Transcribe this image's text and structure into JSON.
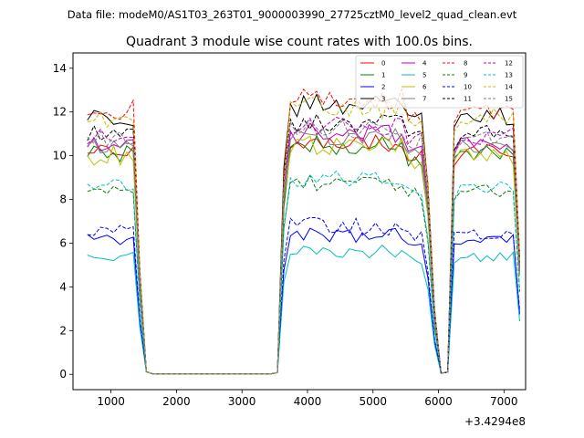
{
  "chart_data": {
    "type": "line",
    "suptitle": "Data file: modeM0/AS1T03_263T01_9000003990_27725cztM0_level2_quad_clean.evt",
    "title": "Quadrant 3 module wise count rates with 100.0s bins.",
    "xlabel": "",
    "ylabel": "",
    "offset_label": "+3.4294e8",
    "xlim": [
      420,
      7330
    ],
    "ylim": [
      -0.7,
      14.7
    ],
    "xticks": [
      1000,
      2000,
      3000,
      4000,
      5000,
      6000,
      7000
    ],
    "yticks": [
      0,
      2,
      4,
      6,
      8,
      10,
      12,
      14
    ],
    "legend_position": "top-right",
    "series": [
      {
        "name": "0",
        "color": "#ff0000",
        "dash": "solid",
        "base": 10.2,
        "amp": 0.35
      },
      {
        "name": "1",
        "color": "#008000",
        "dash": "solid",
        "base": 10.1,
        "amp": 0.4
      },
      {
        "name": "2",
        "color": "#0000ff",
        "dash": "solid",
        "base": 6.1,
        "amp": 0.3
      },
      {
        "name": "3",
        "color": "#000000",
        "dash": "solid",
        "base": 11.8,
        "amp": 0.45
      },
      {
        "name": "4",
        "color": "#bf00bf",
        "dash": "solid",
        "base": 10.6,
        "amp": 0.4
      },
      {
        "name": "5",
        "color": "#00bfbf",
        "dash": "solid",
        "base": 5.4,
        "amp": 0.25
      },
      {
        "name": "6",
        "color": "#bfbf00",
        "dash": "solid",
        "base": 10.0,
        "amp": 0.45
      },
      {
        "name": "7",
        "color": "#808080",
        "dash": "solid",
        "base": 10.4,
        "amp": 0.35
      },
      {
        "name": "8",
        "color": "#ff0000",
        "dash": "dashed",
        "base": 12.1,
        "amp": 0.45
      },
      {
        "name": "9",
        "color": "#008000",
        "dash": "dashed",
        "base": 8.4,
        "amp": 0.3
      },
      {
        "name": "10",
        "color": "#0000ff",
        "dash": "dashed",
        "base": 6.5,
        "amp": 0.35
      },
      {
        "name": "11",
        "color": "#000000",
        "dash": "dashed",
        "base": 11.0,
        "amp": 0.4
      },
      {
        "name": "12",
        "color": "#bf00bf",
        "dash": "dashed",
        "base": 10.9,
        "amp": 0.4
      },
      {
        "name": "13",
        "color": "#00bfbf",
        "dash": "dashed",
        "base": 8.6,
        "amp": 0.3
      },
      {
        "name": "14",
        "color": "#bfbf00",
        "dash": "dashed",
        "base": 11.7,
        "amp": 0.45
      },
      {
        "name": "15",
        "color": "#808080",
        "dash": "dashed",
        "base": 10.8,
        "amp": 0.4
      }
    ]
  }
}
